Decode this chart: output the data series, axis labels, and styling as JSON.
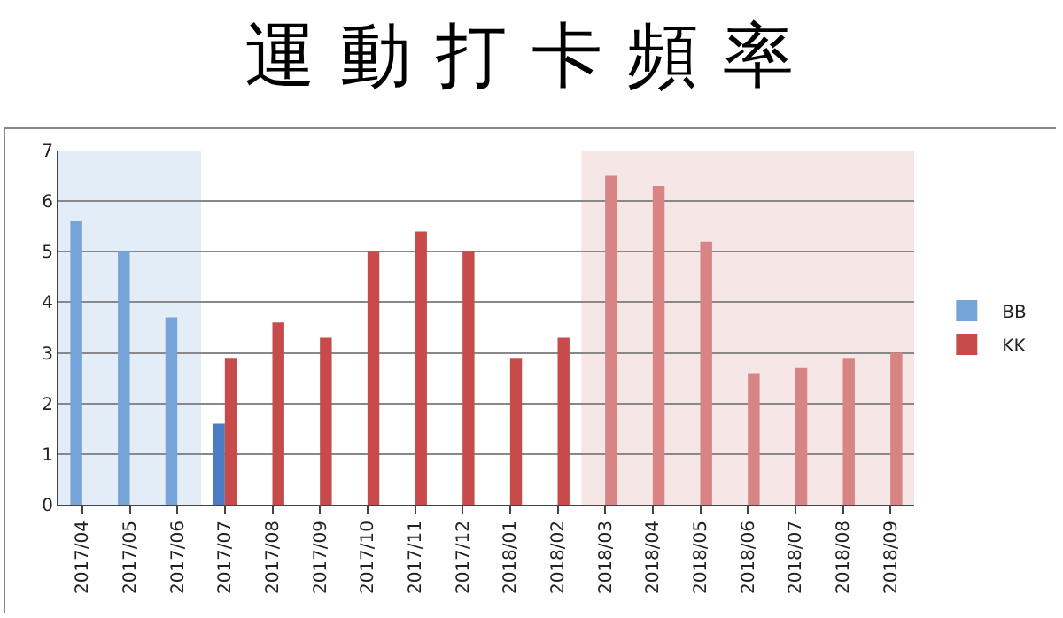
{
  "chart_data": {
    "type": "bar",
    "title": "運動打卡頻率",
    "categories": [
      "2017/04",
      "2017/05",
      "2017/06",
      "2017/07",
      "2017/08",
      "2017/09",
      "2017/10",
      "2017/11",
      "2017/12",
      "2018/01",
      "2018/02",
      "2018/03",
      "2018/04",
      "2018/05",
      "2018/06",
      "2018/07",
      "2018/08",
      "2018/09"
    ],
    "series": [
      {
        "name": "BB",
        "color": "#4a7cc4",
        "colors": [
          "#76a3d8",
          "#76a3d8",
          "#76a3d8",
          "#4a7cc4",
          null,
          null,
          null,
          null,
          null,
          null,
          null,
          null,
          null,
          null,
          null,
          null,
          null,
          null
        ],
        "values": [
          5.6,
          5.0,
          3.7,
          1.6,
          null,
          null,
          null,
          null,
          null,
          null,
          null,
          null,
          null,
          null,
          null,
          null,
          null,
          null
        ]
      },
      {
        "name": "KK",
        "color": "#c84b4b",
        "colors": [
          null,
          null,
          null,
          "#c84b4b",
          "#c84b4b",
          "#c84b4b",
          "#c84b4b",
          "#c84b4b",
          "#c84b4b",
          "#c84b4b",
          "#c84b4b",
          "#d98484",
          "#d98484",
          "#d98484",
          "#d98484",
          "#d98484",
          "#d98484",
          "#d98484"
        ],
        "values": [
          null,
          null,
          null,
          2.9,
          3.6,
          3.3,
          5.0,
          5.4,
          5.0,
          2.9,
          3.3,
          6.5,
          6.3,
          5.2,
          2.6,
          2.7,
          2.9,
          3.0
        ]
      }
    ],
    "bands": [
      {
        "axis": "x",
        "from": "2017/04",
        "to": "2017/06",
        "color": "#e3edf8"
      },
      {
        "axis": "x",
        "from": "2018/03",
        "to": "2018/09",
        "color": "#f6e6e6"
      }
    ],
    "ylim": [
      0,
      7
    ],
    "yticks": [
      0,
      1,
      2,
      3,
      4,
      5,
      6,
      7
    ],
    "grid": "y",
    "legend": "right"
  }
}
